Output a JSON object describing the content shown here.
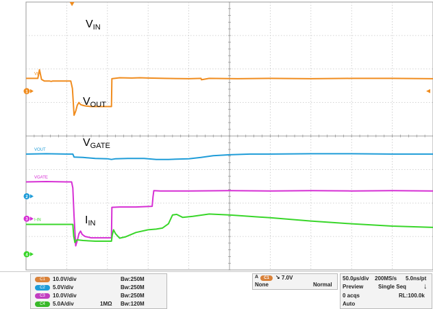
{
  "chart_data": {
    "type": "line",
    "title": "",
    "xlabel": "",
    "ylabel": "",
    "grid": true,
    "x_divisions": 10,
    "y_divisions": 8,
    "x_unit": "us",
    "series": [
      {
        "name": "VIN",
        "label_text": "V",
        "label_sub": "IN",
        "channel": "1",
        "color": "#f08c1e",
        "points": [
          [
            0,
            5.72
          ],
          [
            0.29,
            5.72
          ],
          [
            0.33,
            5.98
          ],
          [
            0.38,
            5.69
          ],
          [
            0.45,
            5.64
          ],
          [
            0.58,
            5.64
          ],
          [
            0.62,
            5.63
          ],
          [
            0.65,
            5.64
          ],
          [
            1.1,
            5.64
          ],
          [
            1.14,
            5.42
          ],
          [
            1.18,
            4.62
          ],
          [
            1.22,
            4.74
          ],
          [
            1.26,
            4.92
          ],
          [
            1.3,
            5.0
          ],
          [
            1.34,
            4.94
          ],
          [
            1.38,
            4.92
          ],
          [
            1.45,
            4.9
          ],
          [
            1.6,
            4.88
          ],
          [
            2.05,
            4.88
          ],
          [
            2.1,
            4.88
          ],
          [
            2.11,
            5.71
          ],
          [
            2.3,
            5.74
          ],
          [
            2.6,
            5.73
          ],
          [
            2.8,
            5.74
          ],
          [
            3.0,
            5.73
          ],
          [
            3.4,
            5.72
          ],
          [
            4.0,
            5.71
          ],
          [
            4.3,
            5.72
          ],
          [
            4.31,
            5.68
          ],
          [
            4.5,
            5.72
          ],
          [
            5.2,
            5.71
          ],
          [
            6.0,
            5.72
          ],
          [
            7.0,
            5.71
          ],
          [
            8.0,
            5.72
          ],
          [
            9.0,
            5.72
          ],
          [
            10.0,
            5.71
          ]
        ]
      },
      {
        "name": "VOUT",
        "label_text": "V",
        "label_sub": "OUT",
        "channel": "2",
        "color": "#1e9cd8",
        "points": [
          [
            0,
            3.46
          ],
          [
            0.5,
            3.47
          ],
          [
            1.0,
            3.46
          ],
          [
            1.15,
            3.46
          ],
          [
            1.18,
            3.37
          ],
          [
            1.4,
            3.36
          ],
          [
            1.7,
            3.33
          ],
          [
            2.0,
            3.32
          ],
          [
            2.1,
            3.3
          ],
          [
            2.2,
            3.32
          ],
          [
            2.5,
            3.33
          ],
          [
            2.9,
            3.33
          ],
          [
            3.2,
            3.3
          ],
          [
            3.5,
            3.3
          ],
          [
            4.0,
            3.32
          ],
          [
            4.3,
            3.36
          ],
          [
            4.6,
            3.41
          ],
          [
            5.0,
            3.44
          ],
          [
            5.5,
            3.46
          ],
          [
            6.0,
            3.46
          ],
          [
            7.0,
            3.47
          ],
          [
            8.0,
            3.47
          ],
          [
            9.0,
            3.46
          ],
          [
            10.0,
            3.46
          ]
        ]
      },
      {
        "name": "VGATE",
        "label_text": "V",
        "label_sub": "GATE",
        "channel": "3",
        "color": "#d62fd4",
        "points": [
          [
            0,
            2.63
          ],
          [
            0.5,
            2.64
          ],
          [
            1.0,
            2.63
          ],
          [
            1.12,
            2.63
          ],
          [
            1.15,
            2.45
          ],
          [
            1.18,
            1.6
          ],
          [
            1.22,
            0.72
          ],
          [
            1.26,
            0.88
          ],
          [
            1.3,
            1.08
          ],
          [
            1.34,
            1.16
          ],
          [
            1.38,
            1.06
          ],
          [
            1.45,
            1.0
          ],
          [
            1.6,
            0.96
          ],
          [
            2.05,
            0.96
          ],
          [
            2.1,
            0.96
          ],
          [
            2.11,
            1.87
          ],
          [
            2.3,
            1.88
          ],
          [
            2.7,
            1.88
          ],
          [
            3.1,
            1.9
          ],
          [
            3.12,
            2.18
          ],
          [
            3.14,
            2.37
          ],
          [
            3.3,
            2.36
          ],
          [
            4.0,
            2.36
          ],
          [
            5.0,
            2.37
          ],
          [
            6.0,
            2.36
          ],
          [
            7.0,
            2.37
          ],
          [
            8.0,
            2.36
          ],
          [
            9.0,
            2.37
          ],
          [
            10.0,
            2.36
          ]
        ]
      },
      {
        "name": "I-IN",
        "label_text": "I",
        "label_sub": "IN",
        "channel": "4",
        "color": "#38d629",
        "points": [
          [
            0,
            1.36
          ],
          [
            0.5,
            1.36
          ],
          [
            1.0,
            1.36
          ],
          [
            1.15,
            1.36
          ],
          [
            1.17,
            1.03
          ],
          [
            1.2,
            0.82
          ],
          [
            1.25,
            0.9
          ],
          [
            1.4,
            0.88
          ],
          [
            1.7,
            0.86
          ],
          [
            2.08,
            0.86
          ],
          [
            2.1,
            0.86
          ],
          [
            2.12,
            1.05
          ],
          [
            2.15,
            1.2
          ],
          [
            2.2,
            1.08
          ],
          [
            2.3,
            0.95
          ],
          [
            2.45,
            0.99
          ],
          [
            2.7,
            1.12
          ],
          [
            3.0,
            1.2
          ],
          [
            3.2,
            1.22
          ],
          [
            3.35,
            1.25
          ],
          [
            3.5,
            1.38
          ],
          [
            3.6,
            1.64
          ],
          [
            3.7,
            1.66
          ],
          [
            3.85,
            1.57
          ],
          [
            4.1,
            1.6
          ],
          [
            4.5,
            1.67
          ],
          [
            5.0,
            1.64
          ],
          [
            6.0,
            1.56
          ],
          [
            7.0,
            1.46
          ],
          [
            8.0,
            1.38
          ],
          [
            9.0,
            1.31
          ],
          [
            10.0,
            1.27
          ]
        ]
      }
    ],
    "left_markers": [
      {
        "channel": "1",
        "color": "#f08c1e",
        "y": 5.34
      },
      {
        "channel": "2",
        "color": "#1e9cd8",
        "y": 2.2
      },
      {
        "channel": "3",
        "color": "#d62fd4",
        "y": 1.53
      },
      {
        "channel": "4",
        "color": "#38d629",
        "y": 0.47
      }
    ],
    "trigger_x": 1.13
  },
  "status_bar": {
    "channels": [
      {
        "badge": "C1",
        "color": "#d9823a",
        "scale": "10.0V/div",
        "impedance": "",
        "bw": "Bw:250M"
      },
      {
        "badge": "C2",
        "color": "#1e9cd8",
        "scale": "5.0V/div",
        "impedance": "",
        "bw": "Bw:250M"
      },
      {
        "badge": "C3",
        "color": "#c13ec0",
        "scale": "10.0V/div",
        "impedance": "",
        "bw": "Bw:250M"
      },
      {
        "badge": "C4",
        "color": "#38b829",
        "scale": "5.0A/div",
        "impedance": "1MΩ",
        "bw": "Bw:120M"
      }
    ],
    "trigger": {
      "source_badge": "C1",
      "level": "7.0V",
      "coupling": "None",
      "mode": "Normal"
    },
    "acquisition": {
      "timebase": "50.0µs/div",
      "sample_rate": "200MS/s",
      "resolution": "5.0ns/pt",
      "status": "Preview",
      "seq": "Single Seq",
      "acqs": "0 acqs",
      "record_length": "RL:100.0k",
      "auto": "Auto"
    }
  }
}
